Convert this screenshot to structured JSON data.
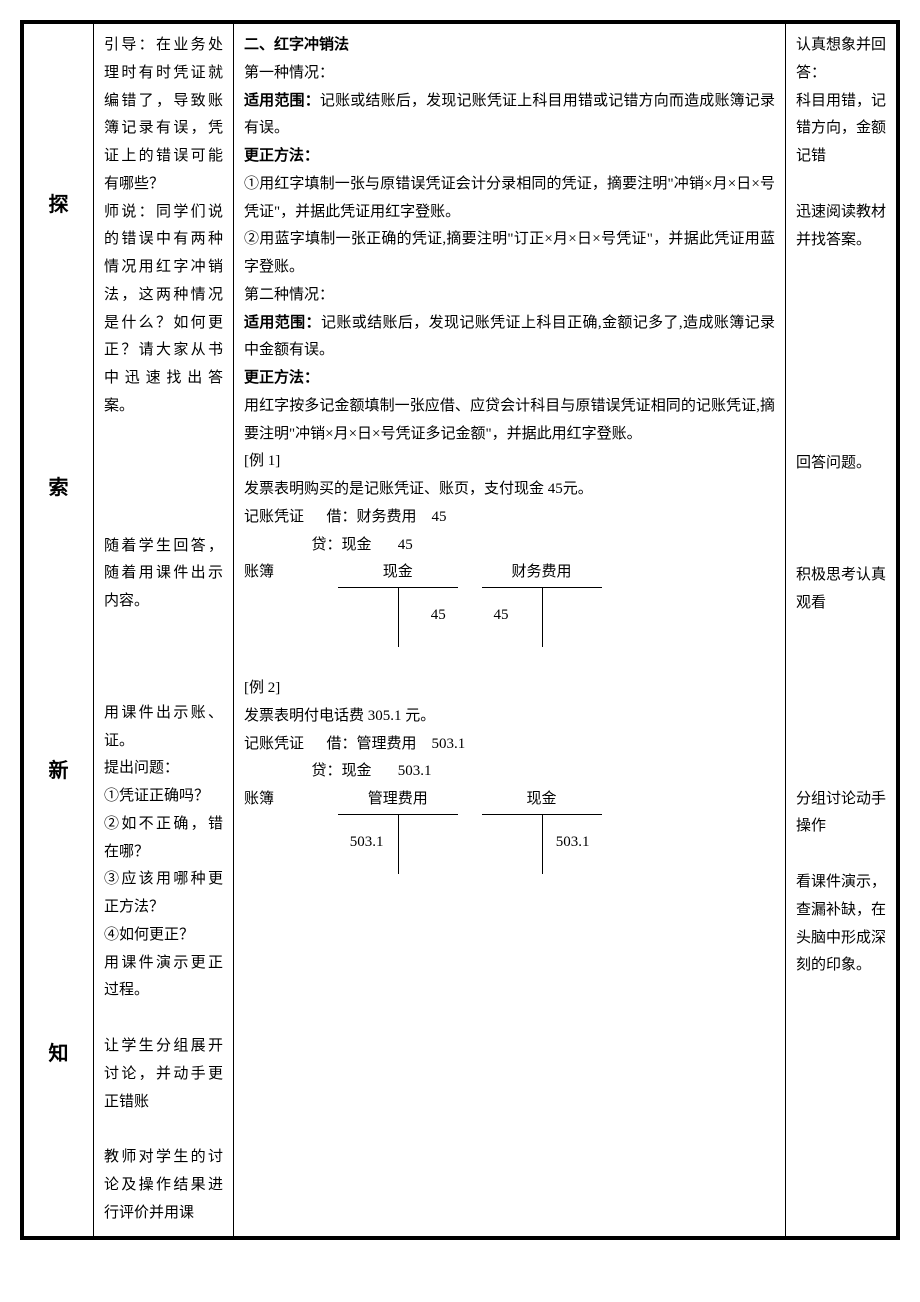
{
  "col1": {
    "ch1": "探",
    "ch2": "索",
    "ch3": "新",
    "ch4": "知"
  },
  "col2": {
    "p1": "引导：在业务处理时有时凭证就编错了，导致账簿记录有误，凭证上的错误可能有哪些？",
    "p2": "师说：同学们说的错误中有两种情况用红字冲销法，这两种情况是什么？如何更正？请大家从书中迅速找出答案。",
    "p3": "随着学生回答，随着用课件出示内容。",
    "p4": "用课件出示账、证。",
    "p5": "提出问题：",
    "p6": "①凭证正确吗？",
    "p7": "②如不正确，错在哪？",
    "p8": "③应该用哪种更正方法？",
    "p9": "④如何更正？",
    "p10": "用课件演示更正过程。",
    "p11": "让学生分组展开讨论，并动手更正错账",
    "p12": "教师对学生的讨论及操作结果进行评价并用课"
  },
  "col3": {
    "title": "二、红字冲销法",
    "case1_label": "第一种情况：",
    "scope_label": "适用范围：",
    "scope1_text": "记账或结账后，发现记账凭证上科目用错或记错方向而造成账簿记录有误。",
    "method_label": "更正方法：",
    "method1_1": "①用红字填制一张与原错误凭证会计分录相同的凭证，摘要注明\"冲销×月×日×号凭证\"，并据此凭证用红字登账。",
    "method1_2": "②用蓝字填制一张正确的凭证,摘要注明\"订正×月×日×号凭证\"，并据此凭证用蓝字登账。",
    "case2_label": "第二种情况：",
    "scope2_text": "记账或结账后，发现记账凭证上科目正确,金额记多了,造成账簿记录中金额有误。",
    "method2_text": "用红字按多记金额填制一张应借、应贷会计科目与原错误凭证相同的记账凭证,摘要注明\"冲销×月×日×号凭证多记金额\"，并据此用红字登账。",
    "ex1_label": "[例 1]",
    "ex1_desc": "发票表明购买的是记账凭证、账页，支付现金 45元。",
    "ex1_voucher_dr": "记账凭证      借：财务费用    45",
    "ex1_voucher_cr": "                  贷：现金       45",
    "ex1_ledger_label": "账簿",
    "ex1_acct1_name": "现金",
    "ex1_acct1_val": "45",
    "ex1_acct2_name": "财务费用",
    "ex1_acct2_val": "45",
    "ex2_label": "[例 2]",
    "ex2_desc": "发票表明付电话费 305.1 元。",
    "ex2_voucher_dr": "记账凭证      借：管理费用    503.1",
    "ex2_voucher_cr": "                  贷：现金       503.1",
    "ex2_ledger_label": "账簿",
    "ex2_acct1_name": "管理费用",
    "ex2_acct1_val": "503.1",
    "ex2_acct2_name": "现金",
    "ex2_acct2_val": "503.1"
  },
  "col4": {
    "p1": "认真想象并回答：",
    "p2": "科目用错，记错方向，金额记错",
    "p3": "迅速阅读教材并找答案。",
    "p4": "回答问题。",
    "p5": "积极思考认真观看",
    "p6": "分组讨论动手操作",
    "p7": "看课件演示，查漏补缺，在头脑中形成深刻的印象。"
  }
}
